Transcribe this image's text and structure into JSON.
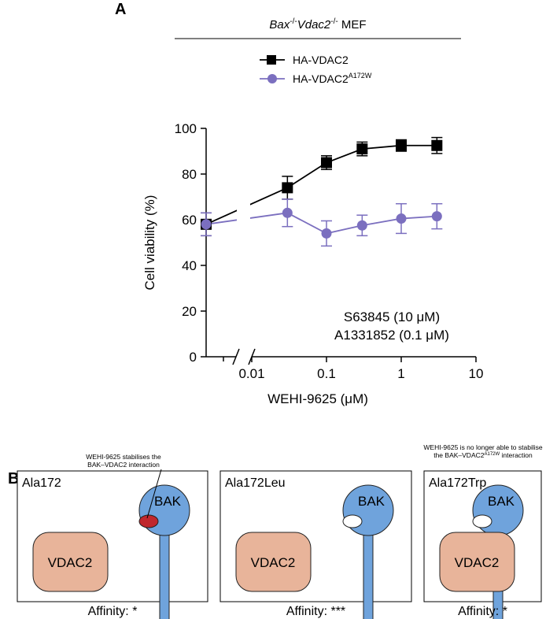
{
  "panel_a": {
    "label": "A"
  },
  "chart_data": {
    "type": "line",
    "title_parts": [
      "Bax",
      "-/-",
      "Vdac2",
      "-/-",
      " MEF"
    ],
    "x_label": "WEHI-9625 (μM)",
    "y_label": "Cell viability (%)",
    "annotations": [
      "S63845 (10 μM)",
      "A1331852 (0.1 μM)"
    ],
    "x": [
      0.03,
      0.1,
      0.3,
      1,
      3
    ],
    "xlim": [
      0.01,
      10
    ],
    "xticks": [
      0.01,
      0.1,
      1,
      10
    ],
    "log_x": true,
    "ylim": [
      0,
      100
    ],
    "yticks": [
      0,
      20,
      40,
      60,
      80,
      100
    ],
    "series": [
      {
        "name": "HA-VDAC2",
        "color": "#000000",
        "marker": "square",
        "control_value": 58,
        "control_error": 5,
        "values": [
          74,
          85,
          91,
          92.5,
          92.5
        ],
        "errors": [
          5,
          3,
          3,
          2.5,
          3.5
        ]
      },
      {
        "name": "HA-VDAC2",
        "name_superscript": "A172W",
        "color": "#7b6fbf",
        "marker": "circle",
        "control_value": 58,
        "control_error": 5,
        "values": [
          63,
          54,
          57.5,
          60.5,
          61.5
        ],
        "errors": [
          6,
          5.5,
          4.5,
          6.5,
          5.5
        ]
      }
    ]
  },
  "panel_b": {
    "label": "B",
    "panels": [
      {
        "title": "Ala172",
        "note": [
          "WEHI-9625 stabilises the",
          "BAK–VDAC2 interaction"
        ],
        "bak": "BAK",
        "vdac": "VDAC2",
        "affinity": "Affinity: *"
      },
      {
        "title": "Ala172Leu",
        "bak": "BAK",
        "vdac": "VDAC2",
        "affinity": "Affinity: ***"
      },
      {
        "title": "Ala172Trp",
        "note": [
          "WEHI-9625 is no longer able to stabilise",
          "the BAK–VDAC2"
        ],
        "note_superscript": "A172W",
        "note_end": " interaction",
        "bak": "BAK",
        "vdac": "VDAC2",
        "affinity": "Affinity: *"
      }
    ]
  }
}
